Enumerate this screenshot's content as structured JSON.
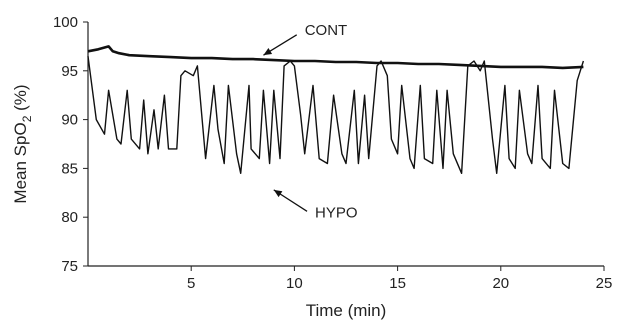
{
  "chart_data": {
    "type": "line",
    "xlabel": "Time (min)",
    "ylabel": {
      "prefix": "Mean SpO",
      "sub": "2",
      "suffix": " (%)"
    },
    "xlim": [
      0,
      25
    ],
    "ylim": [
      75,
      100
    ],
    "xticks": [
      5,
      10,
      15,
      20,
      25
    ],
    "yticks": [
      75,
      80,
      85,
      90,
      95,
      100
    ],
    "grid": false,
    "series": [
      {
        "name": "CONT",
        "color": "#111111",
        "x": [
          0,
          0.5,
          1.0,
          1.2,
          1.5,
          2,
          3,
          4,
          5,
          6,
          7,
          8,
          9,
          10,
          11,
          12,
          13,
          14,
          15,
          16,
          17,
          18,
          19,
          20,
          21,
          22,
          23,
          24
        ],
        "y": [
          97.0,
          97.2,
          97.5,
          97.0,
          96.8,
          96.6,
          96.5,
          96.4,
          96.3,
          96.3,
          96.2,
          96.2,
          96.1,
          96.0,
          96.0,
          95.9,
          95.9,
          95.8,
          95.8,
          95.7,
          95.7,
          95.6,
          95.5,
          95.4,
          95.4,
          95.4,
          95.3,
          95.4
        ]
      },
      {
        "name": "HYPO",
        "color": "#111111",
        "x": [
          0,
          0.4,
          0.8,
          1.0,
          1.4,
          1.6,
          1.9,
          2.1,
          2.5,
          2.7,
          2.9,
          3.2,
          3.4,
          3.7,
          3.9,
          4.3,
          4.5,
          4.7,
          5.1,
          5.3,
          5.7,
          6.1,
          6.3,
          6.6,
          6.8,
          7.2,
          7.4,
          7.8,
          7.9,
          8.3,
          8.5,
          8.8,
          9.0,
          9.3,
          9.5,
          9.8,
          10.0,
          10.3,
          10.5,
          10.9,
          11.2,
          11.6,
          11.9,
          12.3,
          12.5,
          12.9,
          13.1,
          13.4,
          13.6,
          14.0,
          14.2,
          14.5,
          14.7,
          15.0,
          15.2,
          15.6,
          15.8,
          16.1,
          16.3,
          16.7,
          16.9,
          17.2,
          17.4,
          17.7,
          18.1,
          18.4,
          18.7,
          19.0,
          19.2,
          19.6,
          19.8,
          20.2,
          20.4,
          20.7,
          20.9,
          21.3,
          21.5,
          21.8,
          22.0,
          22.4,
          22.6,
          23.0,
          23.3,
          23.7,
          24.0
        ],
        "y": [
          96.5,
          90.0,
          88.5,
          93.0,
          88.0,
          87.5,
          93.0,
          88.0,
          87.0,
          92.0,
          86.5,
          91.0,
          87.0,
          92.5,
          87.0,
          87.0,
          94.5,
          95.0,
          94.5,
          95.5,
          86.0,
          93.5,
          89.0,
          85.5,
          93.5,
          86.5,
          84.5,
          93.5,
          87.0,
          86.0,
          93.0,
          85.5,
          93.0,
          86.0,
          95.5,
          96.0,
          95.5,
          90.5,
          86.5,
          93.5,
          86.0,
          85.5,
          92.5,
          86.5,
          85.5,
          93.0,
          85.5,
          92.5,
          86.0,
          95.5,
          96.0,
          94.5,
          88.0,
          86.5,
          93.5,
          86.0,
          85.0,
          93.5,
          86.0,
          85.5,
          93.0,
          85.0,
          93.0,
          86.5,
          84.5,
          95.5,
          96.0,
          95.0,
          96.0,
          88.0,
          84.5,
          93.5,
          86.0,
          85.0,
          93.0,
          86.5,
          85.5,
          93.5,
          86.0,
          85.0,
          93.0,
          85.5,
          85.0,
          94.0,
          96.0
        ]
      }
    ],
    "annotations": [
      {
        "text": "CONT",
        "x": 10.5,
        "y": 99.2,
        "arrow_to": [
          8.5,
          96.6
        ]
      },
      {
        "text": "HYPO",
        "x": 11.0,
        "y": 80.5,
        "arrow_to": [
          9.0,
          82.8
        ]
      }
    ]
  }
}
